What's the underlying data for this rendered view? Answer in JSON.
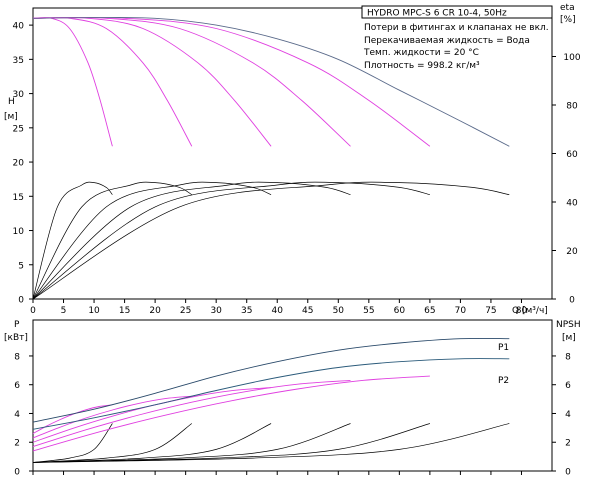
{
  "chart_data": [
    {
      "type": "line",
      "title": "HYDRO MPC-S 6 CR 10-4, 50Hz",
      "notes": [
        "Потери в фитингах и клапанах не вкл.",
        "Перекачиваемая жидкость = Вода",
        "Темп. жидкости = 20 °C",
        "Плотность = 998.2 кг/м³"
      ],
      "xlabel": "Q",
      "xunit": "[м³/ч]",
      "xlim": [
        0,
        85
      ],
      "xticks": [
        0,
        5,
        10,
        15,
        20,
        25,
        30,
        35,
        40,
        45,
        50,
        55,
        60,
        65,
        70,
        75,
        80
      ],
      "ylabel_left": "H",
      "yunit_left": "[м]",
      "ylim_left": [
        0,
        42.5
      ],
      "yticks_left": [
        0,
        5,
        10,
        15,
        20,
        25,
        30,
        35,
        40
      ],
      "ylabel_right": "eta",
      "yunit_right": "[%]",
      "ylim_right": [
        0,
        120
      ],
      "yticks_right": [
        0,
        20,
        40,
        60,
        80,
        100
      ],
      "head_curves": [
        {
          "pumps": 1,
          "x": [
            0,
            3,
            6,
            9,
            11,
            13
          ],
          "y": [
            41,
            41,
            39.5,
            34.5,
            29,
            22.3
          ]
        },
        {
          "pumps": 2,
          "x": [
            0,
            6,
            12,
            18,
            22,
            26
          ],
          "y": [
            41,
            41,
            39.5,
            34.5,
            29,
            22.3
          ]
        },
        {
          "pumps": 3,
          "x": [
            0,
            9,
            18,
            27,
            33,
            39
          ],
          "y": [
            41,
            41,
            39.5,
            34.5,
            29,
            22.3
          ]
        },
        {
          "pumps": 4,
          "x": [
            0,
            12,
            24,
            36,
            44,
            52
          ],
          "y": [
            41,
            41,
            39.5,
            34.5,
            29,
            22.3
          ]
        },
        {
          "pumps": 5,
          "x": [
            0,
            15,
            30,
            45,
            55,
            65
          ],
          "y": [
            41,
            41,
            39.5,
            34.5,
            29,
            22.3
          ]
        },
        {
          "pumps": 6,
          "x": [
            0,
            10,
            20,
            30,
            40,
            50,
            60,
            70,
            78
          ],
          "y": [
            41,
            41.1,
            41,
            40,
            38,
            35,
            30.5,
            26,
            22.3
          ]
        }
      ],
      "eta_curves": [
        {
          "x": [
            0,
            4,
            8,
            10,
            12,
            13
          ],
          "y": [
            0,
            38,
            47,
            48,
            46,
            43
          ]
        },
        {
          "x": [
            0,
            8,
            16,
            20,
            24,
            26
          ],
          "y": [
            0,
            38,
            47,
            48,
            46,
            43
          ]
        },
        {
          "x": [
            0,
            12,
            24,
            30,
            36,
            39
          ],
          "y": [
            0,
            38,
            47,
            48,
            46,
            43
          ]
        },
        {
          "x": [
            0,
            16,
            32,
            40,
            48,
            52
          ],
          "y": [
            0,
            38,
            47,
            48,
            46,
            43
          ]
        },
        {
          "x": [
            0,
            20,
            40,
            50,
            60,
            65
          ],
          "y": [
            0,
            38,
            47,
            48,
            46,
            43
          ]
        },
        {
          "x": [
            0,
            24,
            48,
            60,
            72,
            78
          ],
          "y": [
            0,
            38,
            47,
            48,
            46,
            43
          ]
        }
      ]
    },
    {
      "type": "line",
      "xlabel": "Q",
      "xunit": "[м³/ч]",
      "xlim": [
        0,
        85
      ],
      "xticks": [
        0,
        5,
        10,
        15,
        20,
        25,
        30,
        35,
        40,
        45,
        50,
        55,
        60,
        65,
        70,
        75,
        80
      ],
      "ylabel_left": "P",
      "yunit_left": "[кВт]",
      "ylim_left": [
        0,
        10.5
      ],
      "yticks_left": [
        0,
        2,
        4,
        6,
        8
      ],
      "ylabel_right": "NPSH",
      "yunit_right": "[м]",
      "ylim_right": [
        0,
        10.5
      ],
      "yticks_right": [
        0,
        2,
        4,
        6,
        8
      ],
      "series": [
        {
          "name": "P1",
          "x": [
            0,
            10,
            20,
            30,
            40,
            50,
            60,
            70,
            78
          ],
          "y": [
            3.4,
            4.3,
            5.4,
            6.6,
            7.6,
            8.4,
            8.9,
            9.2,
            9.2
          ]
        },
        {
          "name": "P2",
          "x": [
            0,
            10,
            20,
            30,
            40,
            50,
            60,
            70,
            78
          ],
          "y": [
            2.9,
            3.7,
            4.6,
            5.6,
            6.5,
            7.2,
            7.6,
            7.8,
            7.8
          ]
        }
      ],
      "p2_single": [
        {
          "x": [
            0,
            13
          ],
          "y": [
            2.6,
            4.6
          ]
        },
        {
          "x": [
            0,
            26
          ],
          "y": [
            2.3,
            5.2
          ]
        },
        {
          "x": [
            0,
            39
          ],
          "y": [
            2.0,
            5.8
          ]
        },
        {
          "x": [
            0,
            52
          ],
          "y": [
            1.7,
            6.3
          ]
        },
        {
          "x": [
            0,
            65
          ],
          "y": [
            1.4,
            6.6
          ]
        }
      ],
      "npsh_curves": [
        {
          "x": [
            0,
            6,
            10,
            13
          ],
          "y": [
            0.6,
            0.9,
            1.5,
            3.3
          ]
        },
        {
          "x": [
            0,
            12,
            20,
            26
          ],
          "y": [
            0.6,
            0.9,
            1.5,
            3.3
          ]
        },
        {
          "x": [
            0,
            18,
            30,
            39
          ],
          "y": [
            0.6,
            0.9,
            1.5,
            3.3
          ]
        },
        {
          "x": [
            0,
            24,
            40,
            52
          ],
          "y": [
            0.6,
            0.9,
            1.5,
            3.3
          ]
        },
        {
          "x": [
            0,
            30,
            50,
            65
          ],
          "y": [
            0.6,
            0.9,
            1.5,
            3.3
          ]
        },
        {
          "x": [
            0,
            36,
            60,
            78
          ],
          "y": [
            0.6,
            0.9,
            1.5,
            3.3
          ]
        }
      ]
    }
  ],
  "colors": {
    "head_single": "#e040e0",
    "head_total": "#5a6a8a",
    "eta": "#000000",
    "p1": "#2a4a6a",
    "p2": "#2a5a7a",
    "p2_single": "#e040e0",
    "npsh": "#000000",
    "frame": "#000000",
    "series_label": "#1a4a7a"
  }
}
